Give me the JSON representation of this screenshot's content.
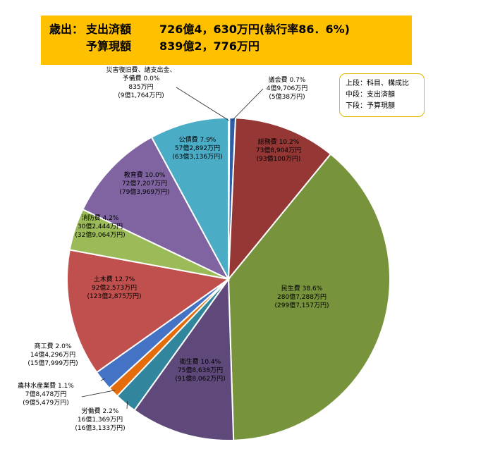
{
  "header": {
    "line1_key": "歳出：",
    "line1_label": "支出済額",
    "line1_value": "726億4，630万円(執行率86．6%)",
    "line2_label": "予算現額",
    "line2_value": "839億2，776万円"
  },
  "legend_note": {
    "line1": "上段：科目、構成比",
    "line2": "中段：支出済額",
    "line3": "下段：予算現額"
  },
  "chart_data": {
    "type": "pie",
    "title": "",
    "start": "12 o'clock",
    "direction": "clockwise",
    "slices": [
      {
        "name": "議会費",
        "percent": 0.7,
        "label": "議会費 0.7%",
        "spent": "4億9,706万円",
        "budget": "(5億38万円)",
        "color": "#2e5ea8"
      },
      {
        "name": "総務費",
        "percent": 10.2,
        "label": "総務費 10.2%",
        "spent": "73億8,904万円",
        "budget": "(93億100万円)",
        "color": "#953735"
      },
      {
        "name": "民生費",
        "percent": 38.6,
        "label": "民生費 38.6%",
        "spent": "280億7,288万円",
        "budget": "(299億7,157万円)",
        "color": "#77933c"
      },
      {
        "name": "衛生費",
        "percent": 10.4,
        "label": "衛生費 10.4%",
        "spent": "75億8,638万円",
        "budget": "(91億8,062万円)",
        "color": "#5f497a"
      },
      {
        "name": "労働費",
        "percent": 2.2,
        "label": "労働費 2.2%",
        "spent": "16億1,369万円",
        "budget": "(16億3,133万円)",
        "color": "#31859c"
      },
      {
        "name": "農林水産業費",
        "percent": 1.1,
        "label": "農林水産業費 1.1%",
        "spent": "7億8,478万円",
        "budget": "(9億5,479万円)",
        "color": "#e46c0a"
      },
      {
        "name": "商工費",
        "percent": 2.0,
        "label": "商工費 2.0%",
        "spent": "14億4,296万円",
        "budget": "(15億7,999万円)",
        "color": "#4472c4"
      },
      {
        "name": "土木費",
        "percent": 12.7,
        "label": "土木費 12.7%",
        "spent": "92億2,573万円",
        "budget": "(123億2,875万円)",
        "color": "#c0504d"
      },
      {
        "name": "消防費",
        "percent": 4.2,
        "label": "消防費 4.2%",
        "spent": "30億2,444万円",
        "budget": "(32億9,064万円)",
        "color": "#9bbb59"
      },
      {
        "name": "教育費",
        "percent": 10.0,
        "label": "教育費 10.0%",
        "spent": "72億7,207万円",
        "budget": "(79億3,969万円)",
        "color": "#8064a2"
      },
      {
        "name": "公債費",
        "percent": 7.9,
        "label": "公債費 7.9%",
        "spent": "57億2,892万円",
        "budget": "(63億3,136万円)",
        "color": "#4bacc6"
      },
      {
        "name": "災害復旧費、諸支出金、予備費",
        "percent": 0.0,
        "label_line1": "災害復旧費、諸支出金、",
        "label_line2": "予備費 0.0%",
        "spent": "835万円",
        "budget": "(9億1,764万円)",
        "color": "#1f497d"
      }
    ]
  }
}
